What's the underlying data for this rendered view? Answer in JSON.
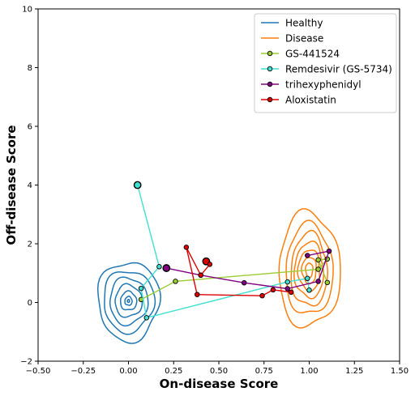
{
  "chart_data": {
    "type": "line",
    "xlabel": "On-disease Score",
    "ylabel": "Off-disease Score",
    "xlim": [
      -0.5,
      1.5
    ],
    "ylim": [
      -2,
      10
    ],
    "xticks": [
      "−0.50",
      "−0.25",
      "0.00",
      "0.25",
      "0.50",
      "0.75",
      "1.00",
      "1.25",
      "1.50"
    ],
    "yticks": [
      "−2",
      "0",
      "2",
      "4",
      "6",
      "8",
      "10"
    ],
    "legend_position": "top-right",
    "grid": false,
    "contours": [
      {
        "name": "Healthy",
        "color": "#1f77b4",
        "center": [
          0.0,
          0.05
        ],
        "levels": [
          [
            0.17,
            1.35
          ],
          [
            0.14,
            1.05
          ],
          [
            0.105,
            0.8
          ],
          [
            0.075,
            0.55
          ],
          [
            0.045,
            0.32
          ],
          [
            0.02,
            0.15
          ],
          [
            0.006,
            0.05
          ]
        ]
      },
      {
        "name": "Disease",
        "color": "#ff7f0e",
        "center": [
          1.0,
          1.1
        ],
        "levels": [
          [
            0.17,
            1.95
          ],
          [
            0.13,
            1.55
          ],
          [
            0.1,
            1.25
          ],
          [
            0.08,
            0.95
          ],
          [
            0.06,
            0.7
          ],
          [
            0.04,
            0.45
          ],
          [
            0.02,
            0.25
          ]
        ]
      }
    ],
    "series": [
      {
        "name": "GS-441524",
        "color": "#9acd32",
        "points": [
          [
            0.07,
            0.1
          ],
          [
            0.26,
            0.72
          ],
          [
            1.05,
            1.13
          ],
          [
            1.1,
            1.48
          ],
          [
            1.05,
            1.45
          ],
          [
            1.1,
            0.68
          ]
        ],
        "highlight": []
      },
      {
        "name": "Remdesivir (GS-5734)",
        "color": "#40e0d0",
        "points": [
          [
            0.05,
            4.0
          ],
          [
            0.17,
            1.22
          ],
          [
            0.07,
            0.48
          ],
          [
            0.1,
            -0.52
          ],
          [
            0.88,
            0.7
          ],
          [
            0.99,
            0.82
          ],
          [
            1.0,
            0.42
          ]
        ],
        "highlight": [
          0
        ]
      },
      {
        "name": "trihexyphenidyl",
        "color": "#800080",
        "points": [
          [
            0.21,
            1.17
          ],
          [
            0.4,
            0.93
          ],
          [
            0.64,
            0.67
          ],
          [
            0.88,
            0.47
          ],
          [
            1.05,
            0.72
          ],
          [
            1.11,
            1.75
          ],
          [
            0.99,
            1.6
          ]
        ],
        "highlight": [
          0
        ]
      },
      {
        "name": "Aloxistatin",
        "color": "#dd0000",
        "points": [
          [
            0.43,
            1.4
          ],
          [
            0.45,
            1.3
          ],
          [
            0.4,
            0.93
          ],
          [
            0.32,
            1.88
          ],
          [
            0.38,
            0.27
          ],
          [
            0.74,
            0.23
          ],
          [
            0.8,
            0.43
          ],
          [
            0.9,
            0.35
          ]
        ],
        "highlight": [
          0
        ]
      }
    ]
  }
}
